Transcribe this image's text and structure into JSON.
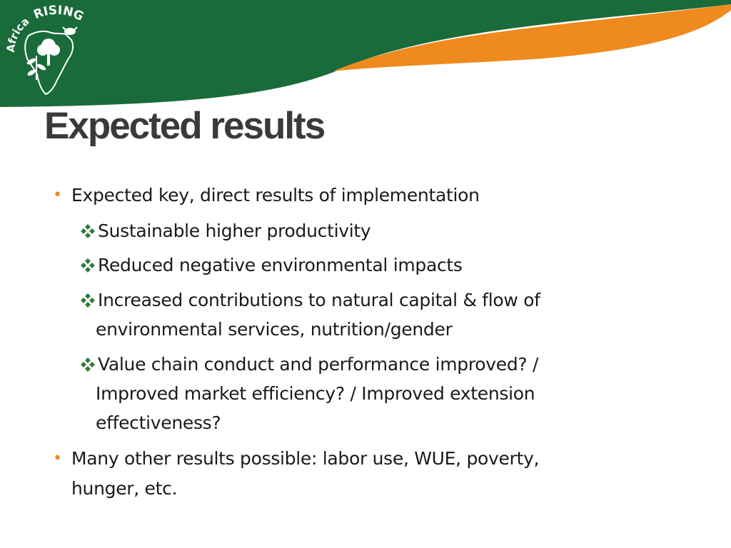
{
  "slide": {
    "title": "Expected results",
    "logo": {
      "name": "Africa RISING",
      "word1": "Africa",
      "word2": "RISING"
    },
    "colors": {
      "green": "#1a6b3a",
      "orange": "#ef8a1f",
      "title": "#3a3a3a",
      "bullet": "#ef8a1f",
      "diamond": "#2f7a3c"
    },
    "bullets": [
      {
        "text": "Expected key, direct results of implementation",
        "sub_items": [
          {
            "lines": [
              "Sustainable higher productivity"
            ]
          },
          {
            "lines": [
              "Reduced negative environmental impacts"
            ]
          },
          {
            "lines": [
              "Increased contributions to natural capital & flow of",
              "environmental services, nutrition/gender"
            ]
          },
          {
            "lines": [
              "Value chain conduct and performance improved? /",
              "Improved market efficiency? / Improved extension",
              "effectiveness?"
            ]
          }
        ]
      },
      {
        "lines": [
          "Many other results possible: labor use, WUE, poverty,",
          "hunger, etc."
        ]
      }
    ]
  }
}
